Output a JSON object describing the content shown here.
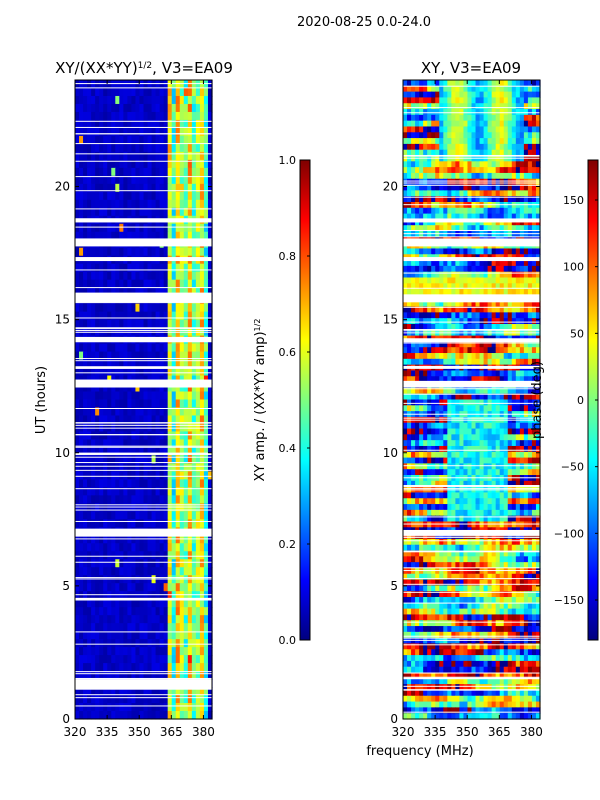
{
  "figure": {
    "suptitle": "2020-08-25 0.0-24.0",
    "xlabel_shared": "frequency (MHz)",
    "colormap_stops": [
      "#00007f",
      "#0000ff",
      "#007fff",
      "#00ffff",
      "#7fff7f",
      "#ffff00",
      "#ff7f00",
      "#ff0000",
      "#7f0000"
    ]
  },
  "chart_data": [
    {
      "type": "heatmap",
      "title_main": "XY/(XX*YY)",
      "title_sup": "1/2",
      "title_rest": ", V3=EA09",
      "xlabel": "",
      "ylabel": "UT (hours)",
      "xlim": [
        320,
        384
      ],
      "ylim": [
        0,
        24
      ],
      "xticks": [
        320,
        335,
        350,
        365,
        380
      ],
      "yticks": [
        0,
        5,
        10,
        15,
        20
      ],
      "colorbar": {
        "label_main": "XY amp. / (XX*YY amp)",
        "label_sup": "1/2",
        "range": [
          0.0,
          1.0
        ],
        "ticks": [
          "0.0",
          "0.2",
          "0.4",
          "0.6",
          "0.8",
          "1.0"
        ],
        "tick_values": [
          0.0,
          0.2,
          0.4,
          0.6,
          0.8,
          1.0
        ]
      },
      "bright_channel_band_mhz": [
        363,
        382
      ],
      "flagged_ut_hours": [
        [
          1.1,
          1.5
        ],
        [
          4.45,
          4.55
        ],
        [
          6.85,
          7.15
        ],
        [
          12.45,
          12.75
        ],
        [
          13.15,
          13.25
        ],
        [
          14.15,
          14.35
        ],
        [
          15.65,
          16.0
        ],
        [
          17.2,
          17.35
        ],
        [
          17.75,
          18.05
        ],
        [
          18.65,
          18.8
        ]
      ]
    },
    {
      "type": "heatmap",
      "title_main": "XY, V3=EA09",
      "title_sup": "",
      "title_rest": "",
      "xlabel": "frequency (MHz)",
      "ylabel": "",
      "xlim": [
        320,
        384
      ],
      "ylim": [
        0,
        24
      ],
      "xticks": [
        320,
        335,
        350,
        365,
        380
      ],
      "yticks": [
        0,
        5,
        10,
        15,
        20
      ],
      "colorbar": {
        "label_main": "phase (deg)",
        "label_sup": "",
        "range": [
          -180,
          180
        ],
        "ticks": [
          "−150",
          "−100",
          "−50",
          "0",
          "50",
          "100",
          "150"
        ],
        "tick_values": [
          -150,
          -100,
          -50,
          0,
          50,
          100,
          150
        ]
      },
      "flagged_ut_hours": [
        [
          1.5,
          1.55
        ],
        [
          6.9,
          7.1
        ],
        [
          12.45,
          12.7
        ],
        [
          13.15,
          13.25
        ],
        [
          14.15,
          14.3
        ],
        [
          15.65,
          15.95
        ],
        [
          17.2,
          17.35
        ],
        [
          17.75,
          18.05
        ],
        [
          18.65,
          18.8
        ]
      ]
    }
  ]
}
